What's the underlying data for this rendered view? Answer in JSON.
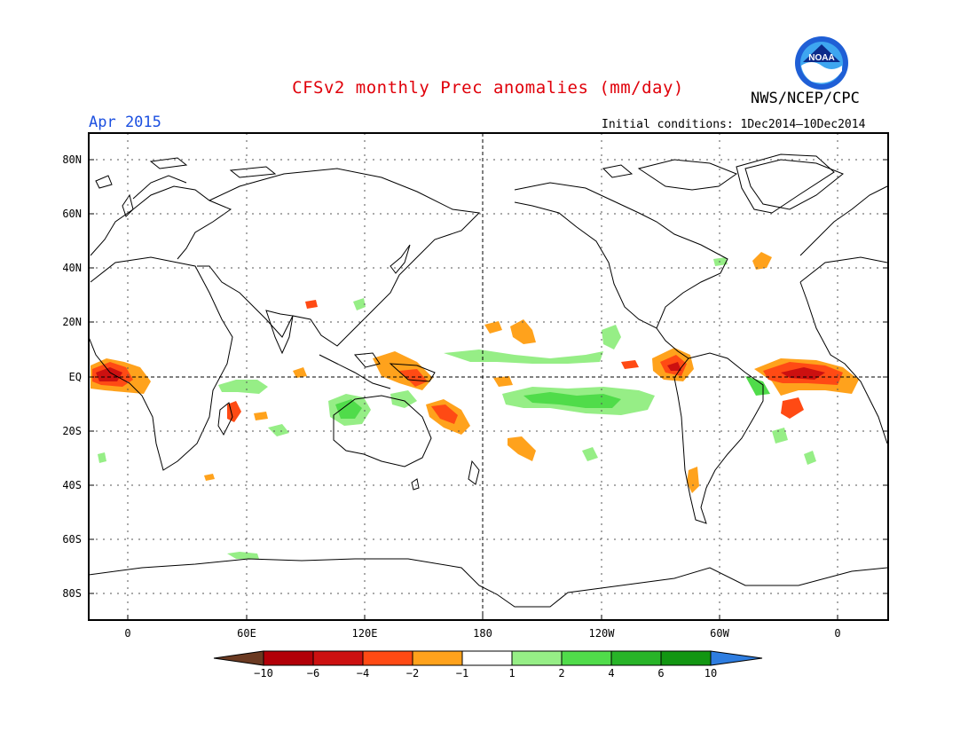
{
  "header": {
    "title": "CFSv2 monthly Prec anomalies (mm/day)",
    "organization": "NWS/NCEP/CPC",
    "logo_text": "NOAA",
    "valid_month": "Apr 2015",
    "initial_conditions": "Initial conditions: 1Dec2014–10Dec2014"
  },
  "axes": {
    "lat_labels": [
      "80N",
      "60N",
      "40N",
      "20N",
      "EQ",
      "20S",
      "40S",
      "60S",
      "80S"
    ],
    "lon_labels": [
      "0",
      "60E",
      "120E",
      "180",
      "120W",
      "60W",
      "0"
    ]
  },
  "colorbar": {
    "labels": [
      "−10",
      "−6",
      "−4",
      "−2",
      "−1",
      "1",
      "2",
      "4",
      "6",
      "10"
    ],
    "colors": [
      "#6b3a22",
      "#b20008",
      "#cc1010",
      "#ff4a14",
      "#ffa21c",
      "#ffffff",
      "#96ee86",
      "#50dc4a",
      "#28b428",
      "#129612",
      "#2e7de0"
    ]
  },
  "colors": {
    "title": "#e0000a",
    "date": "#1b4fe0",
    "wet_light": "#96ee86",
    "wet_mid": "#50dc4a",
    "dry_orange": "#ffa21c",
    "dry_red": "#ff4a14",
    "dry_dark": "#cc1010"
  }
}
